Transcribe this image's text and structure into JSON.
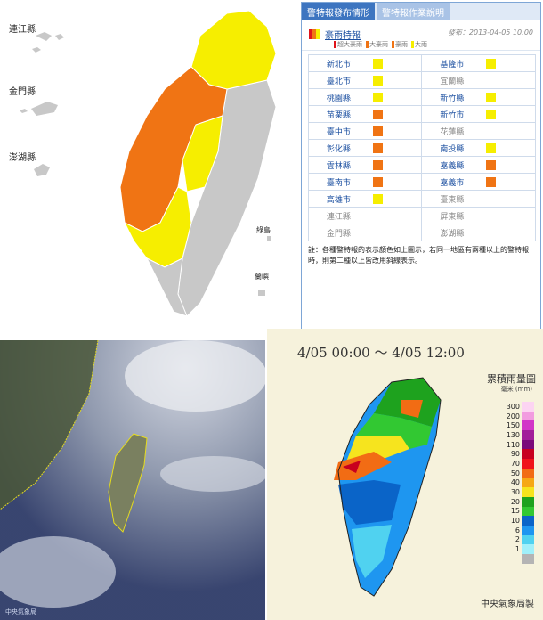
{
  "islands": {
    "lienchiang": "連江縣",
    "kinmen": "金門縣",
    "penghu": "澎湖縣",
    "green_island": "綠島",
    "orchid_island": "蘭嶼"
  },
  "panel": {
    "tabs": [
      "警特報發布情形",
      "警特報作業說明"
    ],
    "title": "豪雨特報",
    "issued": "發布：2013-04-05 10:00",
    "legend": [
      {
        "label": "超大豪雨",
        "color": "#e0141a"
      },
      {
        "label": "大豪雨",
        "color": "#f07414"
      },
      {
        "label": "豪雨",
        "color": "#f07414"
      },
      {
        "label": "大雨",
        "color": "#f6ee00"
      }
    ],
    "rows": [
      {
        "left": {
          "name": "新北市",
          "level": "yellow"
        },
        "right": {
          "name": "基隆市",
          "level": "yellow"
        }
      },
      {
        "left": {
          "name": "臺北市",
          "level": "yellow"
        },
        "right": {
          "name": "宜蘭縣",
          "level": "none"
        }
      },
      {
        "left": {
          "name": "桃園縣",
          "level": "yellow"
        },
        "right": {
          "name": "新竹縣",
          "level": "yellow"
        }
      },
      {
        "left": {
          "name": "苗栗縣",
          "level": "orange"
        },
        "right": {
          "name": "新竹市",
          "level": "yellow"
        }
      },
      {
        "left": {
          "name": "臺中市",
          "level": "orange"
        },
        "right": {
          "name": "花蓮縣",
          "level": "none"
        }
      },
      {
        "left": {
          "name": "彰化縣",
          "level": "orange"
        },
        "right": {
          "name": "南投縣",
          "level": "yellow"
        }
      },
      {
        "left": {
          "name": "雲林縣",
          "level": "orange"
        },
        "right": {
          "name": "嘉義縣",
          "level": "orange"
        }
      },
      {
        "left": {
          "name": "臺南市",
          "level": "orange"
        },
        "right": {
          "name": "嘉義市",
          "level": "orange"
        }
      },
      {
        "left": {
          "name": "高雄市",
          "level": "yellow"
        },
        "right": {
          "name": "臺東縣",
          "level": "none"
        }
      },
      {
        "left": {
          "name": "連江縣",
          "level": "none"
        },
        "right": {
          "name": "屏東縣",
          "level": "none"
        }
      },
      {
        "left": {
          "name": "金門縣",
          "level": "none"
        },
        "right": {
          "name": "澎湖縣",
          "level": "none"
        }
      }
    ],
    "note": "註：各種警特報的表示顏色如上圖示，若同一地區有兩種以上的警特報時，則第二種以上皆改用斜線表示。"
  },
  "colors": {
    "yellow": "#f6ee00",
    "orange": "#f07414",
    "red": "#e0141a",
    "gray": "#c8c8c8"
  },
  "rain": {
    "time_range": "4/05 00:00  ～  4/05 12:00",
    "legend_title": "累積雨量圖",
    "unit": "毫米 (mm)",
    "scale": [
      {
        "v": "300",
        "c": "#fcd4f2"
      },
      {
        "v": "200",
        "c": "#f29ce0"
      },
      {
        "v": "150",
        "c": "#d236c8"
      },
      {
        "v": "130",
        "c": "#a21e9a"
      },
      {
        "v": "110",
        "c": "#7a0a7a"
      },
      {
        "v": "90",
        "c": "#c8001e"
      },
      {
        "v": "70",
        "c": "#f0141a"
      },
      {
        "v": "50",
        "c": "#f26c14"
      },
      {
        "v": "40",
        "c": "#f6a814"
      },
      {
        "v": "30",
        "c": "#f6e41e"
      },
      {
        "v": "20",
        "c": "#1ea21e"
      },
      {
        "v": "15",
        "c": "#32c832"
      },
      {
        "v": "10",
        "c": "#0a64c8"
      },
      {
        "v": "6",
        "c": "#1e96f0"
      },
      {
        "v": "2",
        "c": "#50d2f0"
      },
      {
        "v": "1",
        "c": "#a0f0fa"
      },
      {
        "v": "",
        "c": "#b4b4b4"
      }
    ],
    "credit": "中央氣象局製"
  },
  "satellite": {
    "credit": "中央氣象局"
  }
}
